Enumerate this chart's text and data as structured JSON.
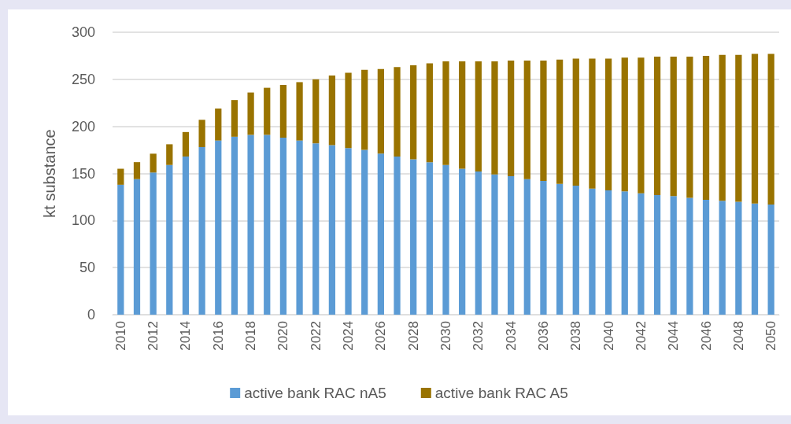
{
  "chart_data": {
    "type": "bar",
    "stacked": true,
    "ylabel": "kt substance",
    "categories": [
      "2010",
      null,
      "2012",
      null,
      "2014",
      null,
      "2016",
      null,
      "2018",
      null,
      "2020",
      null,
      "2022",
      null,
      "2024",
      null,
      "2026",
      null,
      "2028",
      null,
      "2030",
      null,
      "2032",
      null,
      "2034",
      null,
      "2036",
      null,
      "2038",
      null,
      "2040",
      null,
      "2042",
      null,
      "2044",
      null,
      "2046",
      null,
      "2048",
      null,
      "2050"
    ],
    "series": [
      {
        "name": "active bank RAC nA5",
        "color": "#5b9bd5",
        "values": [
          138,
          144,
          151,
          159,
          168,
          178,
          185,
          189,
          191,
          191,
          188,
          185,
          182,
          180,
          177,
          175,
          171,
          168,
          165,
          162,
          159,
          155,
          152,
          149,
          147,
          144,
          142,
          139,
          137,
          134,
          132,
          131,
          129,
          127,
          126,
          124,
          122,
          121,
          120,
          118,
          117
        ]
      },
      {
        "name": "active bank RAC A5",
        "color": "#997300",
        "values": [
          17,
          18,
          20,
          22,
          26,
          29,
          34,
          39,
          45,
          50,
          56,
          62,
          68,
          74,
          80,
          85,
          90,
          95,
          100,
          105,
          110,
          114,
          117,
          120,
          123,
          126,
          128,
          132,
          135,
          138,
          140,
          142,
          144,
          147,
          148,
          150,
          153,
          155,
          156,
          159,
          160
        ]
      }
    ],
    "ylim": [
      0,
      300
    ],
    "yticks": [
      0,
      50,
      100,
      150,
      200,
      250,
      300
    ],
    "grid": "y",
    "legend": "bottom"
  }
}
